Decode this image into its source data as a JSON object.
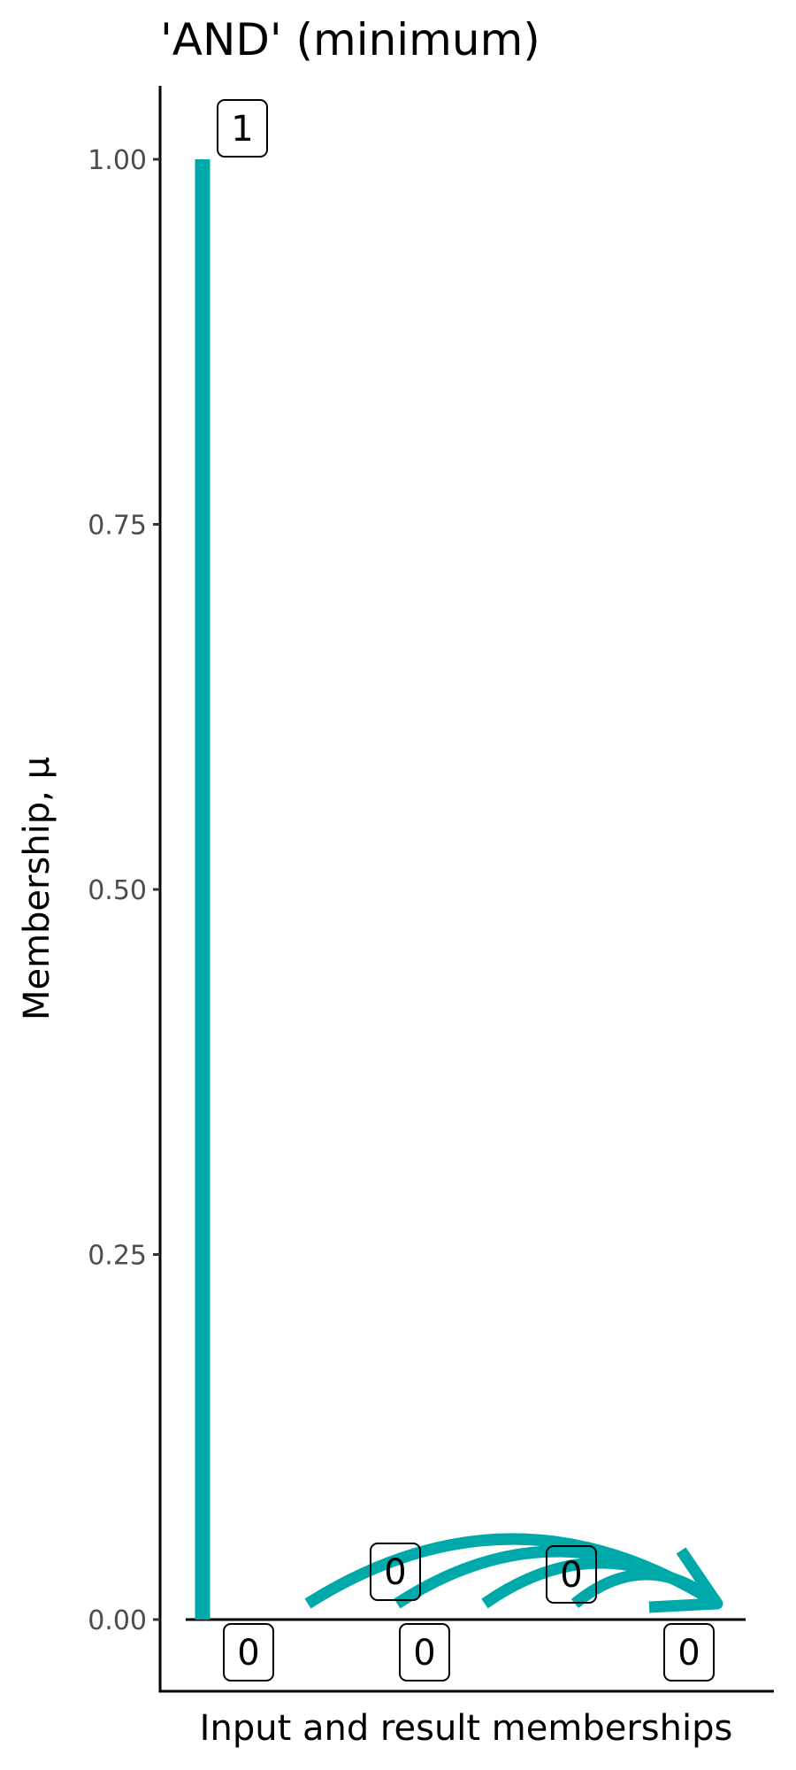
{
  "chart_data": {
    "type": "bar",
    "title": "'AND' (minimum)",
    "xlabel": "Input and result memberships",
    "ylabel": "Membership, μ",
    "ylim": [
      -0.05,
      1.05
    ],
    "yticks": [
      "0.00",
      "0.25",
      "0.50",
      "0.75",
      "1.00"
    ],
    "ytick_values": [
      0,
      0.25,
      0.5,
      0.75,
      1
    ],
    "grid": false,
    "bars": [
      {
        "value": 1,
        "label": "1"
      },
      {
        "value": 0,
        "label": "0"
      },
      {
        "value": 0,
        "label": "0"
      },
      {
        "value": 0,
        "label": "0"
      },
      {
        "value": 0,
        "label": "0"
      }
    ],
    "result": {
      "value": 0,
      "label": "0"
    },
    "arrows": "inputs → result",
    "color": "#00A9A9"
  }
}
